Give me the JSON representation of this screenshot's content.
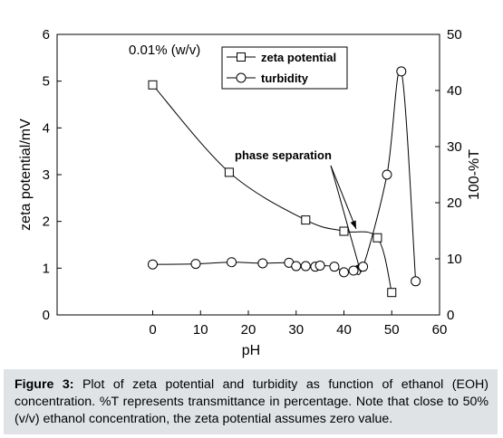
{
  "caption": {
    "label": "Figure 3:",
    "text": "Plot of zeta potential and turbidity as function of ethanol (EOH) concentration. %T represents transmittance in percentage. Note that close to 50% (v/v) ethanol concentration, the zeta potential assumes zero value."
  },
  "chart_data": {
    "type": "line",
    "xlabel": "pH",
    "ylabel_left": "zeta potential/mV",
    "ylabel_right": "100-%T",
    "xlim": [
      -20,
      60
    ],
    "ylim_left": [
      0,
      6
    ],
    "ylim_right": [
      0,
      50
    ],
    "xticks": [
      0,
      10,
      20,
      30,
      40,
      50,
      60
    ],
    "yticks_left": [
      0,
      1,
      2,
      3,
      4,
      5,
      6
    ],
    "yticks_right": [
      0,
      10,
      20,
      30,
      40,
      50
    ],
    "grid": false,
    "legend_position": "top-right",
    "annotations": {
      "concentration": "0.01% (w/v)",
      "phase_separation": "phase separation"
    },
    "series": [
      {
        "name": "zeta potential",
        "marker": "square",
        "axis": "left",
        "x": [
          0,
          16,
          32,
          40,
          47,
          50
        ],
        "y": [
          4.92,
          3.05,
          2.03,
          1.79,
          1.65,
          0.48
        ]
      },
      {
        "name": "turbidity",
        "marker": "circle",
        "axis": "right",
        "x": [
          0,
          9,
          16.5,
          23,
          28.5,
          30,
          32,
          34,
          35,
          38,
          40,
          42,
          44,
          49,
          52,
          55
        ],
        "y": [
          9.0,
          9.1,
          9.4,
          9.2,
          9.3,
          8.7,
          8.7,
          8.6,
          8.8,
          8.6,
          7.6,
          7.9,
          8.6,
          25,
          43.4,
          6.0
        ]
      }
    ]
  }
}
